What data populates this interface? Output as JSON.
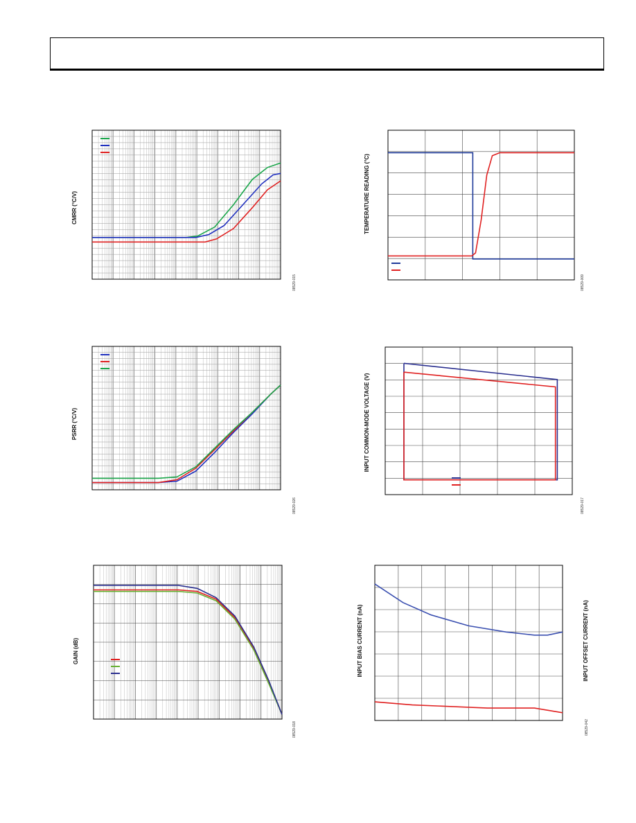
{
  "page": {
    "header": ""
  },
  "chart_data": [
    {
      "id": "cmrr",
      "type": "line",
      "xscale": "log",
      "ylabel": "CMRR (°C/V)",
      "figure_id": "08529-015",
      "legend_loc": "top-left",
      "series": [
        {
          "name": "",
          "color": "#1aa64a",
          "points": [
            [
              0,
              0.72
            ],
            [
              0.5,
              0.72
            ],
            [
              0.56,
              0.71
            ],
            [
              0.65,
              0.65
            ],
            [
              0.75,
              0.5
            ],
            [
              0.85,
              0.33
            ],
            [
              0.93,
              0.25
            ],
            [
              1,
              0.22
            ]
          ]
        },
        {
          "name": "",
          "color": "#1f2fbf",
          "points": [
            [
              0,
              0.72
            ],
            [
              0.55,
              0.72
            ],
            [
              0.62,
              0.7
            ],
            [
              0.7,
              0.64
            ],
            [
              0.8,
              0.5
            ],
            [
              0.9,
              0.36
            ],
            [
              0.96,
              0.3
            ],
            [
              1,
              0.29
            ]
          ]
        },
        {
          "name": "",
          "color": "#e02020",
          "points": [
            [
              0,
              0.75
            ],
            [
              0.6,
              0.75
            ],
            [
              0.66,
              0.73
            ],
            [
              0.75,
              0.66
            ],
            [
              0.85,
              0.52
            ],
            [
              0.93,
              0.4
            ],
            [
              1,
              0.34
            ]
          ]
        }
      ]
    },
    {
      "id": "psrr",
      "type": "line",
      "xscale": "log",
      "ylabel": "PSRR (°C/V)",
      "figure_id": "08529-026",
      "legend_loc": "top-left",
      "series": [
        {
          "name": "",
          "color": "#1f2fbf",
          "points": [
            [
              0,
              0.95
            ],
            [
              0.35,
              0.95
            ],
            [
              0.45,
              0.94
            ],
            [
              0.55,
              0.87
            ],
            [
              0.65,
              0.74
            ],
            [
              0.75,
              0.6
            ],
            [
              0.85,
              0.47
            ],
            [
              0.95,
              0.33
            ],
            [
              1,
              0.27
            ]
          ]
        },
        {
          "name": "",
          "color": "#e02020",
          "points": [
            [
              0,
              0.95
            ],
            [
              0.35,
              0.95
            ],
            [
              0.45,
              0.93
            ],
            [
              0.55,
              0.85
            ],
            [
              0.65,
              0.72
            ],
            [
              0.75,
              0.59
            ],
            [
              0.85,
              0.46
            ],
            [
              0.95,
              0.33
            ],
            [
              1,
              0.27
            ]
          ]
        },
        {
          "name": "",
          "color": "#1aa64a",
          "points": [
            [
              0,
              0.92
            ],
            [
              0.35,
              0.92
            ],
            [
              0.45,
              0.91
            ],
            [
              0.55,
              0.84
            ],
            [
              0.65,
              0.71
            ],
            [
              0.75,
              0.58
            ],
            [
              0.85,
              0.46
            ],
            [
              0.95,
              0.33
            ],
            [
              1,
              0.27
            ]
          ]
        }
      ]
    },
    {
      "id": "gain",
      "type": "line",
      "xscale": "log",
      "ylabel": "GAIN (dB)",
      "figure_id": "08529-018",
      "legend_loc": "bottom-left",
      "series": [
        {
          "name": "",
          "color": "#e02020",
          "points": [
            [
              0,
              0.16
            ],
            [
              0.45,
              0.16
            ],
            [
              0.55,
              0.17
            ],
            [
              0.65,
              0.22
            ],
            [
              0.75,
              0.34
            ],
            [
              0.85,
              0.54
            ],
            [
              0.93,
              0.76
            ],
            [
              1,
              0.97
            ]
          ]
        },
        {
          "name": "",
          "color": "#66b032",
          "points": [
            [
              0,
              0.17
            ],
            [
              0.45,
              0.17
            ],
            [
              0.55,
              0.18
            ],
            [
              0.65,
              0.23
            ],
            [
              0.75,
              0.35
            ],
            [
              0.85,
              0.55
            ],
            [
              0.93,
              0.77
            ],
            [
              1,
              0.97
            ]
          ]
        },
        {
          "name": "",
          "color": "#2a2f8f",
          "points": [
            [
              0,
              0.13
            ],
            [
              0.45,
              0.13
            ],
            [
              0.55,
              0.15
            ],
            [
              0.65,
              0.21
            ],
            [
              0.75,
              0.33
            ],
            [
              0.85,
              0.53
            ],
            [
              0.93,
              0.75
            ],
            [
              1,
              0.97
            ]
          ]
        }
      ]
    },
    {
      "id": "temp-step",
      "type": "line",
      "ylabel": "TEMPERATURE READING (°C)",
      "figure_id": "08529-009",
      "legend_loc": "bottom-left",
      "series": [
        {
          "name": "",
          "color": "#1f3a9a",
          "points": [
            [
              0,
              0.15
            ],
            [
              0.455,
              0.15
            ],
            [
              0.455,
              0.86
            ],
            [
              1,
              0.86
            ]
          ]
        },
        {
          "name": "",
          "color": "#e02020",
          "points": [
            [
              0,
              0.84
            ],
            [
              0.45,
              0.84
            ],
            [
              0.47,
              0.82
            ],
            [
              0.5,
              0.6
            ],
            [
              0.53,
              0.3
            ],
            [
              0.56,
              0.17
            ],
            [
              0.6,
              0.15
            ],
            [
              1,
              0.15
            ]
          ]
        }
      ]
    },
    {
      "id": "cm-voltage",
      "type": "line",
      "ylabel": "INPUT COMMON-MODE VOLTAGE (V)",
      "figure_id": "08529-017",
      "legend_loc": "bottom-center",
      "series": [
        {
          "name": "",
          "color": "#2a2f8f",
          "points": [
            [
              0.1,
              0.11
            ],
            [
              0.92,
              0.22
            ],
            [
              0.92,
              0.9
            ],
            [
              0.1,
              0.9
            ],
            [
              0.1,
              0.11
            ]
          ]
        },
        {
          "name": "",
          "color": "#e02020",
          "points": [
            [
              0.1,
              0.17
            ],
            [
              0.91,
              0.27
            ],
            [
              0.91,
              0.9
            ],
            [
              0.1,
              0.9
            ],
            [
              0.1,
              0.17
            ]
          ]
        }
      ]
    },
    {
      "id": "bias-offset",
      "type": "line",
      "ylabel": "INPUT BIAS CURRENT (nA)",
      "y2label": "INPUT OFFSET CURRENT (nA)",
      "figure_id": "08529-042",
      "series": [
        {
          "name": "",
          "color": "#3a4fb0",
          "points": [
            [
              0,
              0.12
            ],
            [
              0.15,
              0.24
            ],
            [
              0.3,
              0.32
            ],
            [
              0.5,
              0.39
            ],
            [
              0.7,
              0.43
            ],
            [
              0.85,
              0.45
            ],
            [
              0.92,
              0.45
            ],
            [
              1,
              0.43
            ]
          ]
        },
        {
          "name": "",
          "color": "#e02020",
          "points": [
            [
              0,
              0.88
            ],
            [
              0.2,
              0.9
            ],
            [
              0.4,
              0.91
            ],
            [
              0.6,
              0.92
            ],
            [
              0.85,
              0.92
            ],
            [
              1,
              0.95
            ]
          ]
        }
      ]
    }
  ]
}
